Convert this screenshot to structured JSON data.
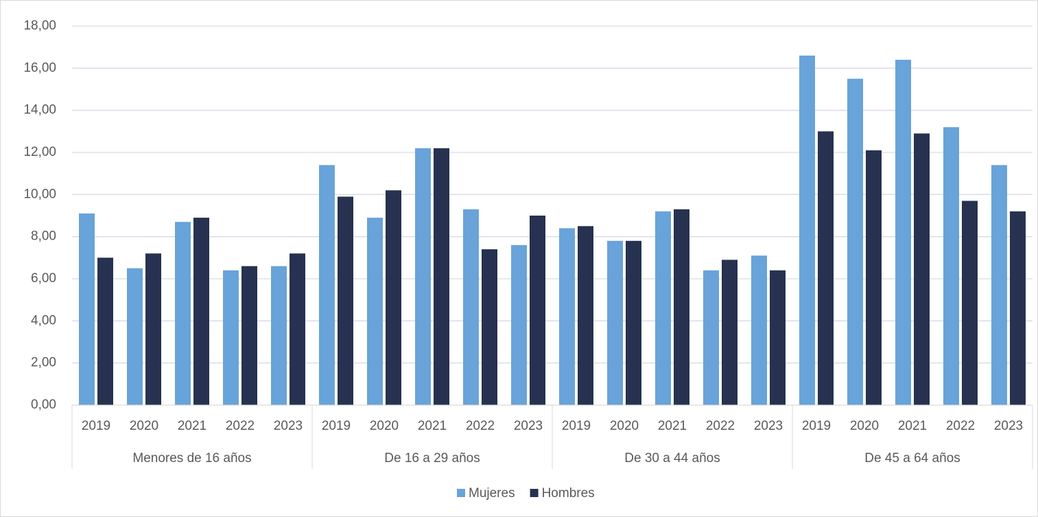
{
  "chart_data": {
    "type": "bar",
    "categories": [
      "2019",
      "2020",
      "2021",
      "2022",
      "2023",
      "2019",
      "2020",
      "2021",
      "2022",
      "2023",
      "2019",
      "2020",
      "2021",
      "2022",
      "2023",
      "2019",
      "2020",
      "2021",
      "2022",
      "2023"
    ],
    "category_groups": [
      "Menores de 16 años",
      "De 16 a 29 años",
      "De 30 a 44 años",
      "De 45 a 64 años"
    ],
    "series": [
      {
        "name": "Mujeres",
        "color": "#68a3da",
        "values": [
          9.1,
          6.5,
          8.7,
          6.4,
          6.6,
          11.4,
          8.9,
          12.2,
          9.3,
          7.6,
          8.4,
          7.8,
          9.2,
          6.4,
          7.1,
          16.6,
          15.5,
          16.4,
          13.2,
          11.4
        ]
      },
      {
        "name": "Hombres",
        "color": "#26324f",
        "values": [
          7.0,
          7.2,
          8.9,
          6.6,
          7.2,
          9.9,
          10.2,
          12.2,
          7.4,
          9.0,
          8.5,
          7.8,
          9.3,
          6.9,
          6.4,
          13.0,
          12.1,
          12.9,
          9.7,
          9.2
        ]
      }
    ],
    "ylim": [
      0,
      18
    ],
    "yticks": [
      {
        "value": 0,
        "label": "0,00"
      },
      {
        "value": 2,
        "label": "2,00"
      },
      {
        "value": 4,
        "label": "4,00"
      },
      {
        "value": 6,
        "label": "6,00"
      },
      {
        "value": 8,
        "label": "8,00"
      },
      {
        "value": 10,
        "label": "10,00"
      },
      {
        "value": 12,
        "label": "12,00"
      },
      {
        "value": 14,
        "label": "14,00"
      },
      {
        "value": 16,
        "label": "16,00"
      },
      {
        "value": 18,
        "label": "18,00"
      }
    ],
    "grid": true,
    "legend": "bottom"
  }
}
